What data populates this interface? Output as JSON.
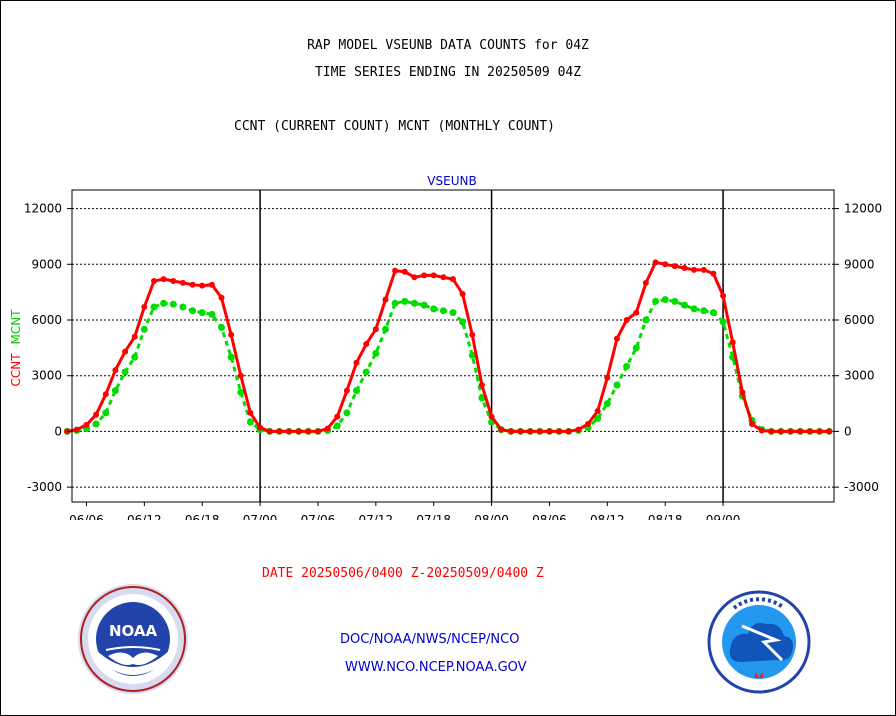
{
  "header": {
    "title_line1": "RAP MODEL VSEUNB DATA COUNTS for 04Z",
    "title_line2": "TIME SERIES ENDING IN 20250509 04Z",
    "subtitle": "CCNT (CURRENT COUNT) MCNT (MONTHLY COUNT)"
  },
  "footer": {
    "date_range": "DATE 20250506/0400 Z-20250509/0400 Z",
    "credit_line1": "DOC/NOAA/NWS/NCEP/NCO",
    "credit_line2": "WWW.NCO.NCEP.NOAA.GOV"
  },
  "logos": {
    "left": "noaa-logo",
    "right": "national-weather-service-logo"
  },
  "colors": {
    "ccnt": "#ff0000",
    "mcnt": "#00dd00",
    "grid": "#000000",
    "station_label": "#0000cc"
  },
  "chart_data": {
    "type": "line",
    "station": "VSEUNB",
    "ylabel_ccnt": "CCNT",
    "ylabel_mcnt": "MCNT",
    "ylim": [
      -3800,
      13000
    ],
    "y_ticks": [
      -3000,
      0,
      3000,
      6000,
      9000,
      12000
    ],
    "xlim": [
      4.5,
      83.5
    ],
    "x_ticks": [
      {
        "x": 6,
        "label": "06/06"
      },
      {
        "x": 12,
        "label": "06/12"
      },
      {
        "x": 18,
        "label": "06/18"
      },
      {
        "x": 24,
        "label": "07/00"
      },
      {
        "x": 30,
        "label": "07/06"
      },
      {
        "x": 36,
        "label": "07/12"
      },
      {
        "x": 42,
        "label": "07/18"
      },
      {
        "x": 48,
        "label": "08/00"
      },
      {
        "x": 54,
        "label": "08/06"
      },
      {
        "x": 60,
        "label": "08/12"
      },
      {
        "x": 66,
        "label": "08/18"
      },
      {
        "x": 72,
        "label": "09/00"
      }
    ],
    "day_boundaries": [
      24,
      48,
      72
    ],
    "grid": true,
    "x_start_hour": 4,
    "series": [
      {
        "name": "CCNT",
        "values": [
          0,
          100,
          350,
          900,
          2000,
          3300,
          4300,
          5100,
          6700,
          8100,
          8200,
          8100,
          8000,
          7900,
          7850,
          7900,
          7200,
          5200,
          3000,
          1000,
          200,
          0,
          0,
          0,
          0,
          0,
          0,
          150,
          800,
          2200,
          3700,
          4700,
          5500,
          7100,
          8650,
          8600,
          8300,
          8400,
          8400,
          8300,
          8200,
          7400,
          5200,
          2500,
          800,
          100,
          0,
          0,
          0,
          0,
          0,
          0,
          0,
          100,
          400,
          1100,
          2900,
          5000,
          6000,
          6400,
          8000,
          9100,
          9000,
          8900,
          8800,
          8700,
          8700,
          8500,
          7300,
          4800,
          2100,
          400,
          50,
          0,
          0,
          0,
          0,
          0,
          0,
          0
        ]
      },
      {
        "name": "MCNT",
        "values": [
          0,
          50,
          150,
          400,
          1000,
          2200,
          3200,
          4000,
          5500,
          6700,
          6900,
          6850,
          6700,
          6500,
          6400,
          6300,
          5600,
          4000,
          2100,
          500,
          100,
          0,
          0,
          0,
          0,
          0,
          0,
          50,
          300,
          1000,
          2200,
          3200,
          4200,
          5500,
          6900,
          7000,
          6900,
          6800,
          6600,
          6500,
          6400,
          5900,
          4100,
          1800,
          500,
          100,
          0,
          0,
          0,
          0,
          0,
          0,
          0,
          50,
          200,
          700,
          1500,
          2500,
          3500,
          4500,
          6000,
          7000,
          7100,
          7000,
          6800,
          6600,
          6500,
          6400,
          5900,
          4000,
          1900,
          600,
          100,
          0,
          0,
          0,
          0,
          0,
          0,
          0
        ]
      }
    ]
  }
}
